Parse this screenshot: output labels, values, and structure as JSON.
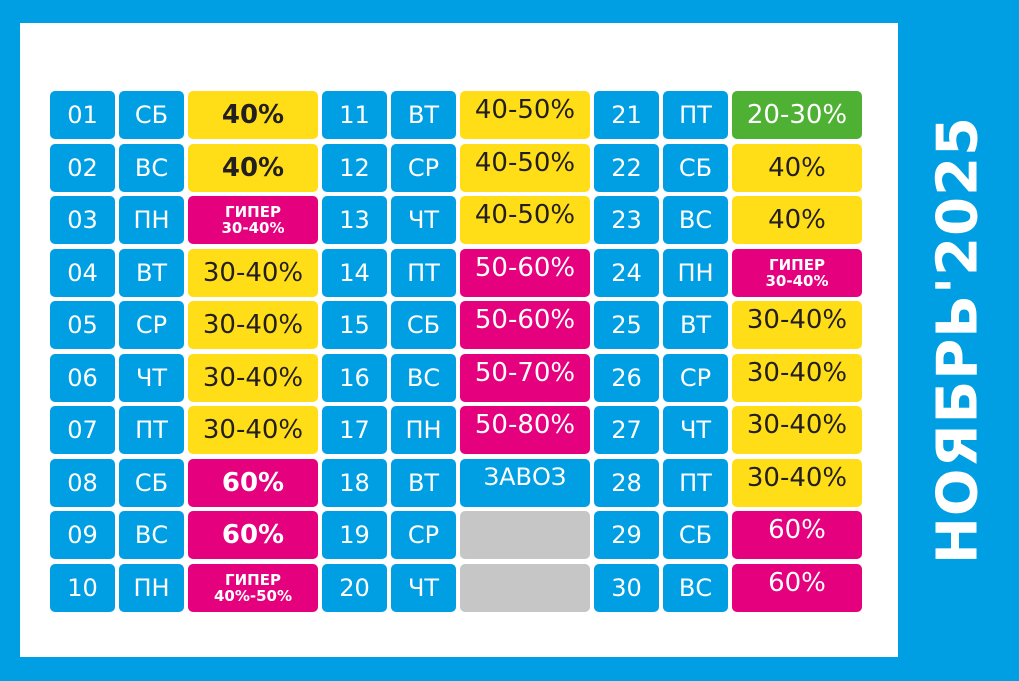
{
  "title": "НОЯБРЬ'2025",
  "colors": {
    "blue": "#009fe3",
    "yellow": "#ffde17",
    "pink": "#e5007e",
    "green": "#4fb133",
    "gray": "#c6c6c6"
  },
  "days": [
    {
      "num": "01",
      "dow": "СБ",
      "discount": [
        "40%"
      ],
      "color": "yellow",
      "bold": true
    },
    {
      "num": "02",
      "dow": "ВС",
      "discount": [
        "40%"
      ],
      "color": "yellow",
      "bold": true
    },
    {
      "num": "03",
      "dow": "ПН",
      "discount": [
        "ГИПЕР",
        "30-40%"
      ],
      "color": "pink",
      "bold": true
    },
    {
      "num": "04",
      "dow": "ВТ",
      "discount": [
        "30-40%"
      ],
      "color": "yellow",
      "bold": false
    },
    {
      "num": "05",
      "dow": "СР",
      "discount": [
        "30-40%"
      ],
      "color": "yellow",
      "bold": false
    },
    {
      "num": "06",
      "dow": "ЧТ",
      "discount": [
        "30-40%"
      ],
      "color": "yellow",
      "bold": false
    },
    {
      "num": "07",
      "dow": "ПТ",
      "discount": [
        "30-40%"
      ],
      "color": "yellow",
      "bold": false
    },
    {
      "num": "08",
      "dow": "СБ",
      "discount": [
        "60%"
      ],
      "color": "pink",
      "bold": true
    },
    {
      "num": "09",
      "dow": "ВС",
      "discount": [
        "60%"
      ],
      "color": "pink",
      "bold": true
    },
    {
      "num": "10",
      "dow": "ПН",
      "discount": [
        "ГИПЕР",
        "40%-50%"
      ],
      "color": "pink",
      "bold": true
    },
    {
      "num": "11",
      "dow": "ВТ",
      "discount": [
        "40-50%"
      ],
      "color": "yellow",
      "bold": false,
      "top": true
    },
    {
      "num": "12",
      "dow": "СР",
      "discount": [
        "40-50%"
      ],
      "color": "yellow",
      "bold": false,
      "top": true
    },
    {
      "num": "13",
      "dow": "ЧТ",
      "discount": [
        "40-50%"
      ],
      "color": "yellow",
      "bold": false,
      "top": true
    },
    {
      "num": "14",
      "dow": "ПТ",
      "discount": [
        "50-60%"
      ],
      "color": "pink",
      "bold": false,
      "top": true
    },
    {
      "num": "15",
      "dow": "СБ",
      "discount": [
        "50-60%"
      ],
      "color": "pink",
      "bold": false,
      "top": true
    },
    {
      "num": "16",
      "dow": "ВС",
      "discount": [
        "50-70%"
      ],
      "color": "pink",
      "bold": false,
      "top": true
    },
    {
      "num": "17",
      "dow": "ПН",
      "discount": [
        "50-80%"
      ],
      "color": "pink",
      "bold": false,
      "top": true
    },
    {
      "num": "18",
      "dow": "ВТ",
      "discount": [
        "ЗАВОЗ"
      ],
      "color": "blue",
      "bold": false,
      "top": true
    },
    {
      "num": "19",
      "dow": "СР",
      "discount": [],
      "color": "gray",
      "bold": false
    },
    {
      "num": "20",
      "dow": "ЧТ",
      "discount": [],
      "color": "gray",
      "bold": false
    },
    {
      "num": "21",
      "dow": "ПТ",
      "discount": [
        "20-30%"
      ],
      "color": "green",
      "bold": false
    },
    {
      "num": "22",
      "dow": "СБ",
      "discount": [
        "40%"
      ],
      "color": "yellow",
      "bold": false
    },
    {
      "num": "23",
      "dow": "ВС",
      "discount": [
        "40%"
      ],
      "color": "yellow",
      "bold": false
    },
    {
      "num": "24",
      "dow": "ПН",
      "discount": [
        "ГИПЕР",
        "30-40%"
      ],
      "color": "pink",
      "bold": true
    },
    {
      "num": "25",
      "dow": "ВТ",
      "discount": [
        "30-40%"
      ],
      "color": "yellow",
      "bold": false,
      "top": true
    },
    {
      "num": "26",
      "dow": "СР",
      "discount": [
        "30-40%"
      ],
      "color": "yellow",
      "bold": false,
      "top": true
    },
    {
      "num": "27",
      "dow": "ЧТ",
      "discount": [
        "30-40%"
      ],
      "color": "yellow",
      "bold": false,
      "top": true
    },
    {
      "num": "28",
      "dow": "ПТ",
      "discount": [
        "30-40%"
      ],
      "color": "yellow",
      "bold": false,
      "top": true
    },
    {
      "num": "29",
      "dow": "СБ",
      "discount": [
        "60%"
      ],
      "color": "pink",
      "bold": false,
      "top": true
    },
    {
      "num": "30",
      "dow": "ВС",
      "discount": [
        "60%"
      ],
      "color": "pink",
      "bold": false,
      "top": true
    }
  ]
}
